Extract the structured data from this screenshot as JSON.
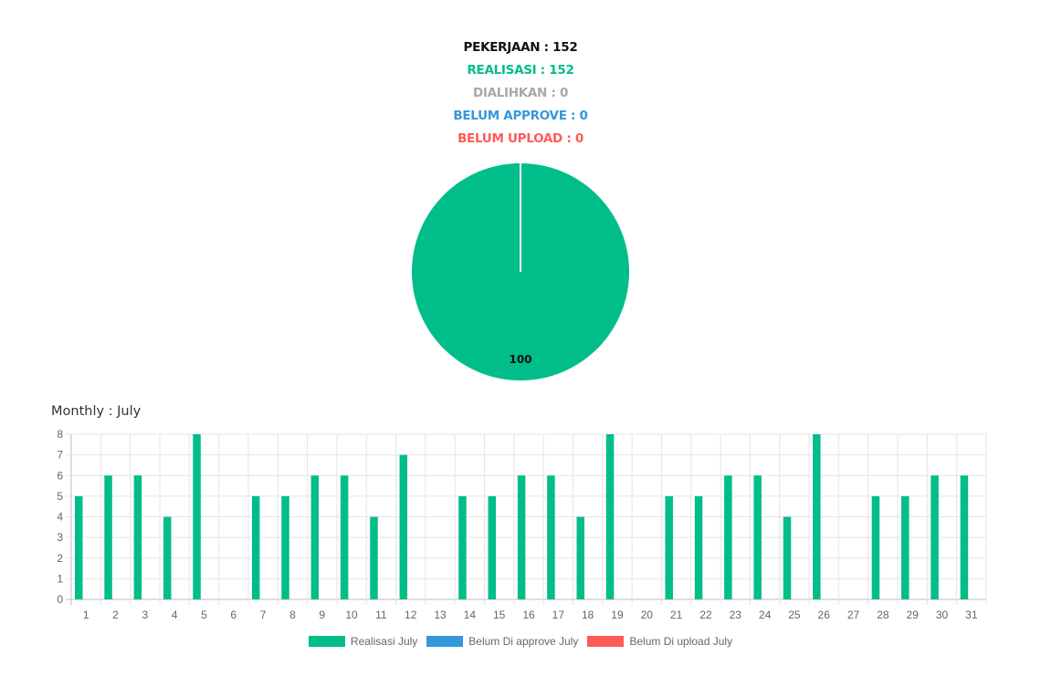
{
  "summary": {
    "pekerjaan": "PEKERJAAN : 152",
    "realisasi": "REALISASI : 152",
    "dialihkan": "DIALIHKAN : 0",
    "belum_approve": "BELUM APPROVE : 0",
    "belum_upload": "BELUM UPLOAD : 0"
  },
  "colors": {
    "pekerjaan": "#111111",
    "realisasi": "#00BD8A",
    "dialihkan": "#A8A8A8",
    "belum_approve": "#3498DB",
    "belum_upload": "#FF5A5A"
  },
  "monthly_title": "Monthly : July",
  "legend": [
    {
      "label": "Realisasi July",
      "color": "#00BD8A"
    },
    {
      "label": "Belum Di approve July",
      "color": "#3498DB"
    },
    {
      "label": "Belum Di upload July",
      "color": "#FF5A5A"
    }
  ],
  "chart_data": [
    {
      "type": "pie",
      "slices": [
        {
          "value": 100,
          "color": "#00BD8A"
        }
      ],
      "labels": [
        "100"
      ]
    },
    {
      "type": "bar",
      "title": "Monthly : July",
      "categories": [
        "1",
        "2",
        "3",
        "4",
        "5",
        "6",
        "7",
        "8",
        "9",
        "10",
        "11",
        "12",
        "13",
        "14",
        "15",
        "16",
        "17",
        "18",
        "19",
        "20",
        "21",
        "22",
        "23",
        "24",
        "25",
        "26",
        "27",
        "28",
        "29",
        "30",
        "31"
      ],
      "series": [
        {
          "name": "Realisasi July",
          "color": "#00BD8A",
          "values": [
            5,
            6,
            6,
            4,
            8,
            0,
            5,
            5,
            6,
            6,
            4,
            7,
            0,
            5,
            5,
            6,
            6,
            4,
            8,
            0,
            5,
            5,
            6,
            6,
            4,
            8,
            0,
            5,
            5,
            6,
            6
          ]
        },
        {
          "name": "Belum Di approve July",
          "color": "#3498DB",
          "values": [
            0,
            0,
            0,
            0,
            0,
            0,
            0,
            0,
            0,
            0,
            0,
            0,
            0,
            0,
            0,
            0,
            0,
            0,
            0,
            0,
            0,
            0,
            0,
            0,
            0,
            0,
            0,
            0,
            0,
            0,
            0
          ]
        },
        {
          "name": "Belum Di upload July",
          "color": "#FF5A5A",
          "values": [
            0,
            0,
            0,
            0,
            0,
            0,
            0,
            0,
            0,
            0,
            0,
            0,
            0,
            0,
            0,
            0,
            0,
            0,
            0,
            0,
            0,
            0,
            0,
            0,
            0,
            0,
            0,
            0,
            0,
            0,
            0
          ]
        }
      ],
      "ylim": [
        0,
        8
      ],
      "yticks": [
        0,
        1,
        2,
        3,
        4,
        5,
        6,
        7,
        8
      ],
      "grid": true,
      "legend": "bottom"
    }
  ]
}
